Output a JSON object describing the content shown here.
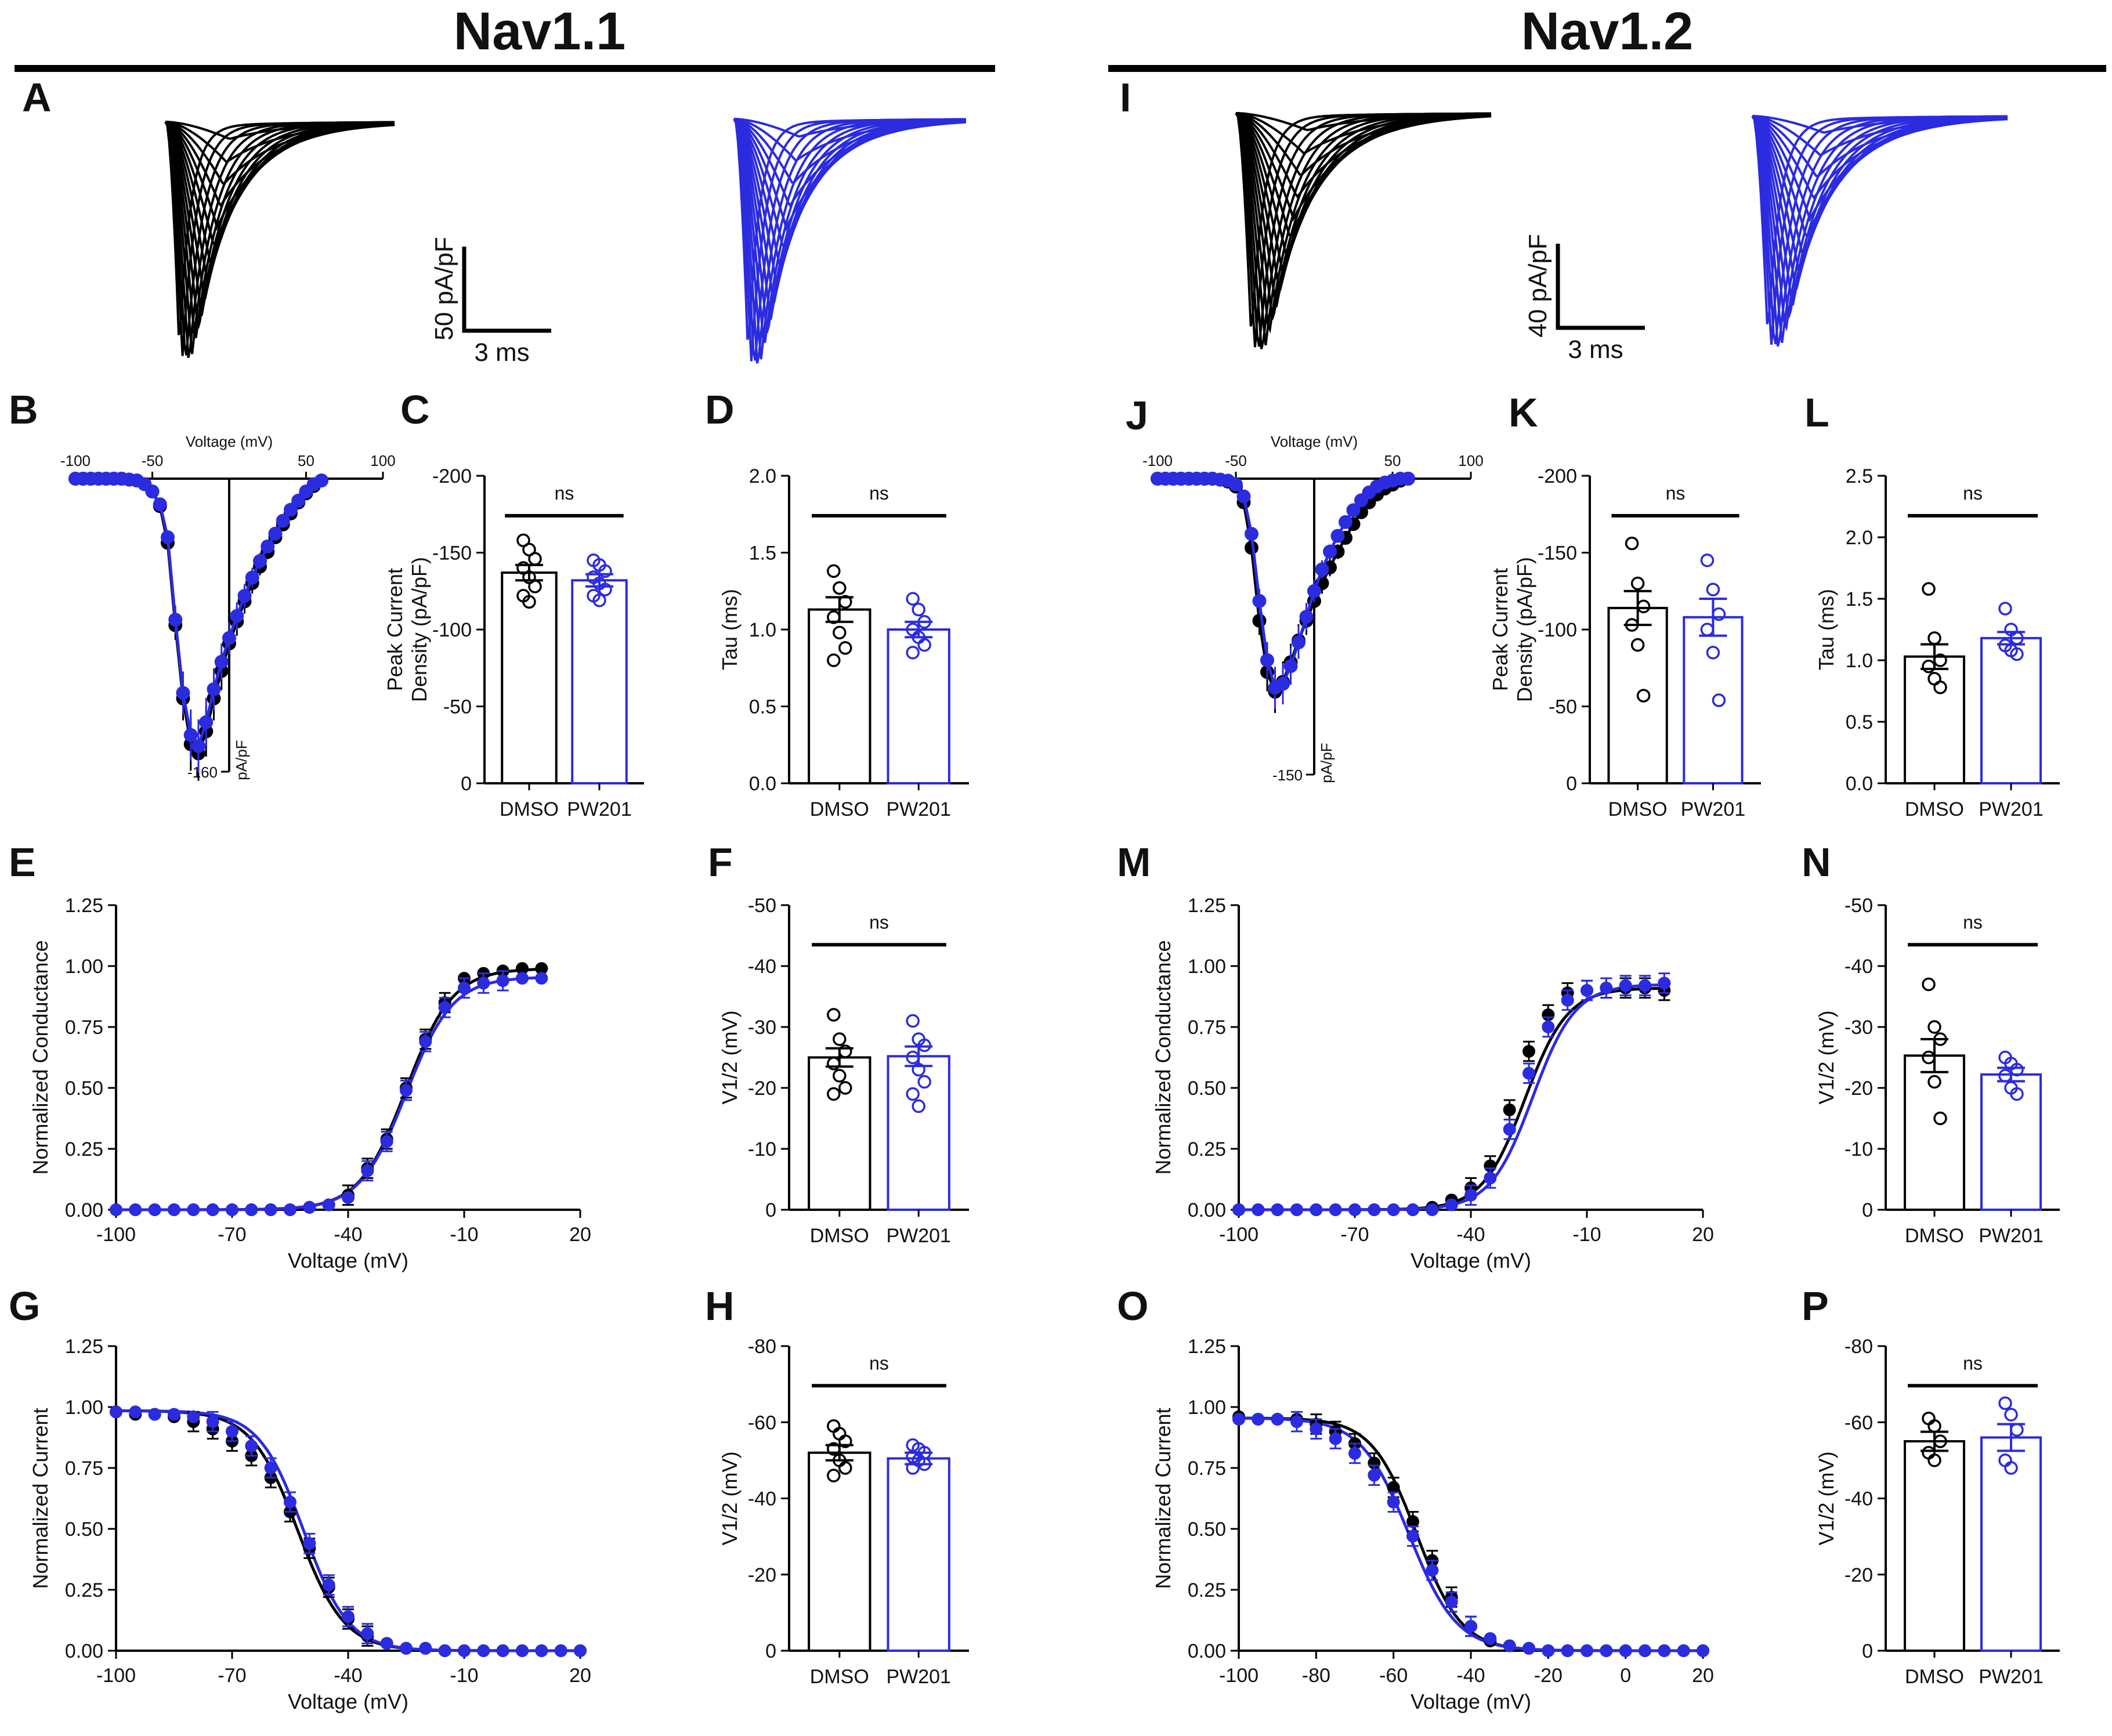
{
  "colors": {
    "dmso": "#000000",
    "pw201": "#2b2be0",
    "axis": "#111111"
  },
  "chart_data": [
    {
      "panel": "A",
      "type": "line",
      "group_title": "Nav1.1",
      "kind": "traces",
      "scale_bar": {
        "y_label": "50 pA/pF",
        "x_label": "3 ms"
      },
      "series": [
        {
          "name": "DMSO",
          "n_traces": 17,
          "peak_min": -155
        },
        {
          "name": "PW201",
          "n_traces": 17,
          "peak_min": -155
        }
      ]
    },
    {
      "panel": "B",
      "type": "line",
      "kind": "iv",
      "xlabel": "Voltage (mV)",
      "ylabel": "pA/pF",
      "xticks": [
        "-100",
        "-50",
        "50",
        "100"
      ],
      "yticks": [
        "-160"
      ],
      "xlim": [
        -100,
        100
      ],
      "ylim": [
        -160,
        0
      ],
      "x": [
        -100,
        -95,
        -90,
        -85,
        -80,
        -75,
        -70,
        -65,
        -60,
        -55,
        -50,
        -45,
        -40,
        -35,
        -30,
        -25,
        -20,
        -15,
        -10,
        -5,
        0,
        5,
        10,
        15,
        20,
        25,
        30,
        35,
        40,
        45,
        50,
        55,
        60
      ],
      "series": [
        {
          "name": "DMSO",
          "values": [
            0,
            0,
            0,
            0,
            0,
            0,
            0,
            -0.5,
            -1,
            -3,
            -7,
            -15,
            -35,
            -80,
            -120,
            -145,
            -150,
            -138,
            -120,
            -105,
            -90,
            -78,
            -67,
            -57,
            -48,
            -40,
            -32,
            -25,
            -19,
            -13,
            -8,
            -4,
            -1
          ]
        },
        {
          "name": "PW201",
          "values": [
            0,
            0,
            0,
            0,
            0,
            0,
            0,
            -0.5,
            -1,
            -3,
            -7,
            -14,
            -32,
            -77,
            -117,
            -140,
            -146,
            -133,
            -115,
            -100,
            -87,
            -75,
            -64,
            -54,
            -45,
            -37,
            -30,
            -23,
            -17,
            -12,
            -7,
            -3,
            -1
          ]
        }
      ]
    },
    {
      "panel": "C",
      "type": "bar",
      "kind": "bar",
      "ylabel": [
        "Peak Current",
        "Density (pA/pF)"
      ],
      "sig": "ns",
      "categories": [
        "DMSO",
        "PW201"
      ],
      "yticks": [
        "-200",
        "-150",
        "-100",
        "-50",
        "0"
      ],
      "ylim": [
        0,
        -200
      ],
      "tick_step": -50,
      "values": [
        -137,
        -132
      ],
      "sem": [
        5,
        4
      ],
      "points": [
        [
          -158,
          -152,
          -146,
          -140,
          -134,
          -128,
          -122,
          -118
        ],
        [
          -145,
          -142,
          -138,
          -134,
          -130,
          -126,
          -122,
          -119
        ]
      ]
    },
    {
      "panel": "D",
      "type": "bar",
      "kind": "bar",
      "ylabel": [
        "Tau (ms)"
      ],
      "sig": "ns",
      "categories": [
        "DMSO",
        "PW201"
      ],
      "yticks": [
        "0.0",
        "0.5",
        "1.0",
        "1.5",
        "2.0"
      ],
      "ylim": [
        0,
        2.0
      ],
      "tick_step": 0.5,
      "values": [
        1.13,
        1.0
      ],
      "sem": [
        0.08,
        0.05
      ],
      "points": [
        [
          1.38,
          1.27,
          1.18,
          1.08,
          0.98,
          0.88,
          0.8
        ],
        [
          1.2,
          1.13,
          1.05,
          1.0,
          0.95,
          0.9,
          0.85
        ]
      ]
    },
    {
      "panel": "E",
      "type": "line",
      "kind": "curve",
      "xlabel": "Voltage (mV)",
      "ylabel": "Normalized Conductance",
      "xticks": [
        "-100",
        "-70",
        "-40",
        "-10",
        "20"
      ],
      "yticks": [
        "0.00",
        "0.25",
        "0.50",
        "0.75",
        "1.00",
        "1.25"
      ],
      "xlim": [
        -100,
        20
      ],
      "ylim": [
        0,
        1.25
      ],
      "x": [
        -100,
        -95,
        -90,
        -85,
        -80,
        -75,
        -70,
        -65,
        -60,
        -55,
        -50,
        -45,
        -40,
        -35,
        -30,
        -25,
        -20,
        -15,
        -10,
        -5,
        0,
        5,
        10
      ],
      "series": [
        {
          "name": "DMSO",
          "values": [
            0,
            0,
            0,
            0,
            0,
            0,
            0,
            0,
            0,
            0,
            0.01,
            0.02,
            0.06,
            0.17,
            0.29,
            0.5,
            0.7,
            0.85,
            0.95,
            0.97,
            0.98,
            0.99,
            0.99
          ]
        },
        {
          "name": "PW201",
          "values": [
            0,
            0,
            0,
            0,
            0,
            0,
            0,
            0,
            0,
            0,
            0.01,
            0.02,
            0.05,
            0.16,
            0.28,
            0.49,
            0.69,
            0.83,
            0.91,
            0.93,
            0.94,
            0.95,
            0.95
          ]
        }
      ],
      "fit": {
        "v_half": [
          -25,
          -25
        ],
        "k": [
          6,
          6
        ],
        "amp": [
          0.99,
          0.955
        ]
      }
    },
    {
      "panel": "F",
      "type": "bar",
      "kind": "bar",
      "ylabel": [
        "V1/2 (mV)"
      ],
      "sig": "ns",
      "categories": [
        "DMSO",
        "PW201"
      ],
      "yticks": [
        "0",
        "-10",
        "-20",
        "-30",
        "-40",
        "-50"
      ],
      "ylim": [
        0,
        -50
      ],
      "tick_step": -10,
      "values": [
        -25,
        -25.2
      ],
      "sem": [
        1.5,
        1.6
      ],
      "points": [
        [
          -32,
          -28,
          -26,
          -24,
          -22,
          -20,
          -19
        ],
        [
          -31,
          -28,
          -27,
          -25,
          -23,
          -21,
          -19,
          -17
        ]
      ]
    },
    {
      "panel": "G",
      "type": "line",
      "kind": "curve",
      "xlabel": "Voltage (mV)",
      "ylabel": "Normalized Current",
      "xticks": [
        "-100",
        "-70",
        "-40",
        "-10",
        "20"
      ],
      "yticks": [
        "0.00",
        "0.25",
        "0.50",
        "0.75",
        "1.00",
        "1.25"
      ],
      "xlim": [
        -100,
        20
      ],
      "ylim": [
        0,
        1.25
      ],
      "x": [
        -100,
        -95,
        -90,
        -85,
        -80,
        -75,
        -70,
        -65,
        -60,
        -55,
        -50,
        -45,
        -40,
        -35,
        -30,
        -25,
        -20,
        -15,
        -10,
        -5,
        0,
        5,
        10,
        15,
        20
      ],
      "series": [
        {
          "name": "DMSO",
          "values": [
            0.98,
            0.97,
            0.97,
            0.96,
            0.94,
            0.91,
            0.86,
            0.8,
            0.71,
            0.57,
            0.42,
            0.26,
            0.13,
            0.06,
            0.03,
            0.01,
            0.01,
            0,
            0,
            0,
            0,
            0,
            0,
            0,
            0
          ]
        },
        {
          "name": "PW201",
          "values": [
            0.98,
            0.98,
            0.97,
            0.97,
            0.96,
            0.94,
            0.9,
            0.84,
            0.75,
            0.61,
            0.44,
            0.27,
            0.14,
            0.07,
            0.03,
            0.01,
            0.01,
            0,
            0,
            0,
            0,
            0,
            0,
            0,
            0
          ]
        }
      ],
      "fit": {
        "v_half": [
          -53,
          -51.5
        ],
        "k": [
          -6,
          -5.8
        ],
        "amp": [
          0.985,
          0.985
        ]
      }
    },
    {
      "panel": "H",
      "type": "bar",
      "kind": "bar",
      "ylabel": [
        "V1/2 (mV)"
      ],
      "sig": "ns",
      "categories": [
        "DMSO",
        "PW201"
      ],
      "yticks": [
        "0",
        "-20",
        "-40",
        "-60",
        "-80"
      ],
      "ylim": [
        0,
        -80
      ],
      "tick_step": -20,
      "values": [
        -52,
        -50.5
      ],
      "sem": [
        2,
        1.5
      ],
      "points": [
        [
          -59,
          -57,
          -55,
          -53,
          -50,
          -48,
          -46
        ],
        [
          -54,
          -53,
          -52,
          -51,
          -50,
          -49,
          -48
        ]
      ]
    },
    {
      "panel": "I",
      "type": "line",
      "group_title": "Nav1.2",
      "kind": "traces",
      "scale_bar": {
        "y_label": "40 pA/pF",
        "x_label": "3 ms"
      },
      "series": [
        {
          "name": "DMSO",
          "n_traces": 17,
          "peak_min": -138
        },
        {
          "name": "PW201",
          "n_traces": 17,
          "peak_min": -133
        }
      ]
    },
    {
      "panel": "J",
      "type": "line",
      "kind": "iv",
      "xlabel": "Voltage (mV)",
      "ylabel": "pA/pF",
      "xticks": [
        "-100",
        "-50",
        "50",
        "100"
      ],
      "yticks": [
        "-150"
      ],
      "xlim": [
        -100,
        100
      ],
      "ylim": [
        -150,
        0
      ],
      "x": [
        -100,
        -95,
        -90,
        -85,
        -80,
        -75,
        -70,
        -65,
        -60,
        -55,
        -50,
        -45,
        -40,
        -35,
        -30,
        -25,
        -20,
        -15,
        -10,
        -5,
        0,
        5,
        10,
        15,
        20,
        25,
        30,
        35,
        40,
        45,
        50,
        55,
        60
      ],
      "series": [
        {
          "name": "DMSO",
          "values": [
            0,
            0,
            0,
            0,
            0,
            0,
            0,
            0,
            -0.5,
            -1.5,
            -4,
            -12,
            -35,
            -72,
            -98,
            -108,
            -103,
            -93,
            -82,
            -72,
            -62,
            -53,
            -45,
            -37,
            -30,
            -23,
            -17,
            -12,
            -8,
            -5,
            -3,
            -1,
            0
          ]
        },
        {
          "name": "PW201",
          "values": [
            0,
            0,
            0,
            0,
            0,
            0,
            0,
            0,
            -0.5,
            -1,
            -3,
            -9,
            -28,
            -62,
            -92,
            -106,
            -104,
            -95,
            -83,
            -70,
            -57,
            -46,
            -37,
            -29,
            -22,
            -16,
            -11,
            -7,
            -4,
            -2,
            -1,
            0,
            0
          ]
        }
      ]
    },
    {
      "panel": "K",
      "type": "bar",
      "kind": "bar",
      "ylabel": [
        "Peak Current",
        "Density (pA/pF)"
      ],
      "sig": "ns",
      "categories": [
        "DMSO",
        "PW201"
      ],
      "yticks": [
        "-200",
        "-150",
        "-100",
        "-50",
        "0"
      ],
      "ylim": [
        0,
        -200
      ],
      "tick_step": -50,
      "values": [
        -114,
        -108
      ],
      "sem": [
        11,
        12
      ],
      "points": [
        [
          -156,
          -130,
          -115,
          -103,
          -90,
          -57
        ],
        [
          -145,
          -126,
          -110,
          -100,
          -85,
          -54
        ]
      ]
    },
    {
      "panel": "L",
      "type": "bar",
      "kind": "bar",
      "ylabel": [
        "Tau (ms)"
      ],
      "sig": "ns",
      "categories": [
        "DMSO",
        "PW201"
      ],
      "yticks": [
        "0.0",
        "0.5",
        "1.0",
        "1.5",
        "2.0",
        "2.5"
      ],
      "ylim": [
        0,
        2.5
      ],
      "tick_step": 0.5,
      "values": [
        1.03,
        1.18
      ],
      "sem": [
        0.1,
        0.05
      ],
      "points": [
        [
          1.58,
          1.18,
          1.0,
          0.95,
          0.85,
          0.78
        ],
        [
          1.42,
          1.25,
          1.18,
          1.12,
          1.08,
          1.05
        ]
      ]
    },
    {
      "panel": "M",
      "type": "line",
      "kind": "curve",
      "xlabel": "Voltage (mV)",
      "ylabel": "Normalized Conductance",
      "xticks": [
        "-100",
        "-70",
        "-40",
        "-10",
        "20"
      ],
      "yticks": [
        "0.00",
        "0.25",
        "0.50",
        "0.75",
        "1.00",
        "1.25"
      ],
      "xlim": [
        -100,
        20
      ],
      "ylim": [
        0,
        1.25
      ],
      "x": [
        -100,
        -95,
        -90,
        -85,
        -80,
        -75,
        -70,
        -65,
        -60,
        -55,
        -50,
        -45,
        -40,
        -35,
        -30,
        -25,
        -20,
        -15,
        -10,
        -5,
        0,
        5,
        10
      ],
      "series": [
        {
          "name": "DMSO",
          "values": [
            0,
            0,
            0,
            0,
            0,
            0,
            0,
            0,
            0,
            0,
            0.01,
            0.04,
            0.09,
            0.18,
            0.41,
            0.65,
            0.8,
            0.89,
            0.9,
            0.91,
            0.91,
            0.91,
            0.9
          ]
        },
        {
          "name": "PW201",
          "values": [
            0,
            0,
            0,
            0,
            0,
            0,
            0,
            0,
            0,
            0,
            0,
            0.02,
            0.06,
            0.13,
            0.33,
            0.56,
            0.75,
            0.86,
            0.9,
            0.91,
            0.92,
            0.92,
            0.93
          ]
        }
      ],
      "fit": {
        "v_half": [
          -26,
          -24
        ],
        "k": [
          5.5,
          5.5
        ],
        "amp": [
          0.91,
          0.925
        ]
      }
    },
    {
      "panel": "N",
      "type": "bar",
      "kind": "bar",
      "ylabel": [
        "V1/2 (mV)"
      ],
      "sig": "ns",
      "categories": [
        "DMSO",
        "PW201"
      ],
      "yticks": [
        "0",
        "-10",
        "-20",
        "-30",
        "-40",
        "-50"
      ],
      "ylim": [
        0,
        -50
      ],
      "tick_step": -10,
      "values": [
        -25.3,
        -22.2
      ],
      "sem": [
        2.7,
        1.1
      ],
      "points": [
        [
          -37,
          -30,
          -28,
          -25,
          -21,
          -15
        ],
        [
          -25,
          -24,
          -23,
          -22,
          -20,
          -19
        ]
      ]
    },
    {
      "panel": "O",
      "type": "line",
      "kind": "curve",
      "xlabel": "Voltage (mV)",
      "ylabel": "Normalized Current",
      "xticks": [
        "-100",
        "-80",
        "-60",
        "-40",
        "-20",
        "0",
        "20"
      ],
      "yticks": [
        "0.00",
        "0.25",
        "0.50",
        "0.75",
        "1.00",
        "1.25"
      ],
      "xlim": [
        -100,
        20
      ],
      "ylim": [
        0,
        1.25
      ],
      "x": [
        -100,
        -95,
        -90,
        -85,
        -80,
        -75,
        -70,
        -65,
        -60,
        -55,
        -50,
        -45,
        -40,
        -35,
        -30,
        -25,
        -20,
        -15,
        -10,
        -5,
        0,
        5,
        10,
        15,
        20
      ],
      "series": [
        {
          "name": "DMSO",
          "values": [
            0.96,
            0.95,
            0.95,
            0.95,
            0.93,
            0.9,
            0.85,
            0.77,
            0.67,
            0.53,
            0.37,
            0.22,
            0.1,
            0.04,
            0.02,
            0.01,
            0,
            0,
            0,
            0,
            0,
            0,
            0,
            0,
            0
          ]
        },
        {
          "name": "PW201",
          "values": [
            0.95,
            0.95,
            0.95,
            0.94,
            0.91,
            0.87,
            0.81,
            0.72,
            0.61,
            0.47,
            0.33,
            0.2,
            0.1,
            0.05,
            0.02,
            0.01,
            0,
            0,
            0,
            0,
            0,
            0,
            0,
            0,
            0
          ]
        }
      ],
      "fit": {
        "v_half": [
          -54,
          -56
        ],
        "k": [
          -5.8,
          -6.2
        ],
        "amp": [
          0.955,
          0.955
        ]
      }
    },
    {
      "panel": "P",
      "type": "bar",
      "kind": "bar",
      "ylabel": [
        "V1/2 (mV)"
      ],
      "sig": "ns",
      "categories": [
        "DMSO",
        "PW201"
      ],
      "yticks": [
        "0",
        "-20",
        "-40",
        "-60",
        "-80"
      ],
      "ylim": [
        0,
        -80
      ],
      "tick_step": -20,
      "values": [
        -55,
        -56
      ],
      "sem": [
        2.5,
        3.5
      ],
      "points": [
        [
          -61,
          -59,
          -55,
          -52,
          -50
        ],
        [
          -65,
          -62,
          -58,
          -50,
          -48
        ]
      ]
    }
  ]
}
